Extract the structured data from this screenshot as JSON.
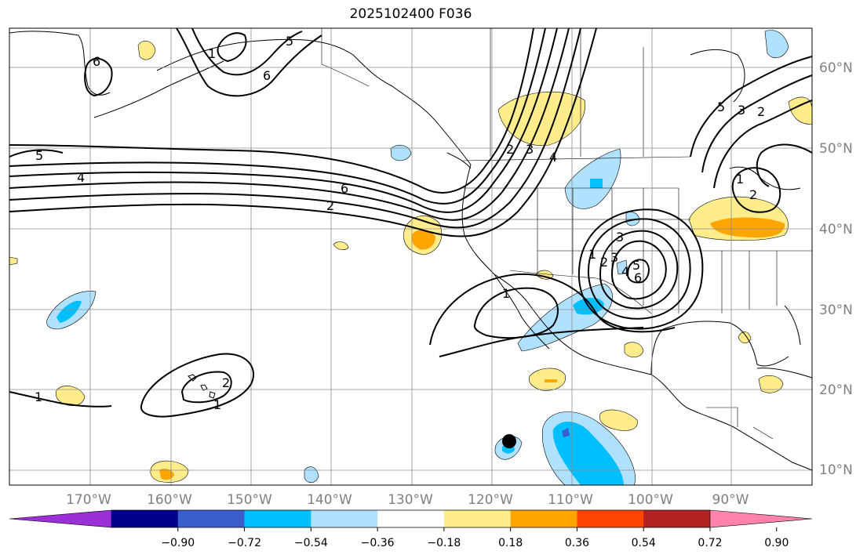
{
  "title": "2025102400 F036",
  "map": {
    "lat_labels": [
      "60°N",
      "50°N",
      "40°N",
      "30°N",
      "20°N",
      "10°N"
    ],
    "lon_labels": [
      "170°W",
      "160°W",
      "150°W",
      "140°W",
      "130°W",
      "120°W",
      "110°W",
      "100°W",
      "90°W"
    ],
    "contour_labels": [
      "6",
      "5",
      "4",
      "6",
      "2",
      "5",
      "6",
      "1",
      "2",
      "3",
      "4",
      "5",
      "3",
      "2",
      "1",
      "2",
      "3",
      "1",
      "2",
      "3",
      "4",
      "5",
      "6",
      "1",
      "1",
      "2"
    ]
  },
  "colorbar": {
    "ticks": [
      "−0.90",
      "−0.72",
      "−0.54",
      "−0.36",
      "−0.18",
      "0.18",
      "0.36",
      "0.54",
      "0.72",
      "0.90"
    ],
    "colors": [
      "#9b30d9",
      "#00008b",
      "#3a5fcd",
      "#00bfff",
      "#b0e2ff",
      "#ffffff",
      "#ffec8b",
      "#ffa500",
      "#ff4500",
      "#b22222",
      "#ff82ab"
    ]
  },
  "colors": {
    "neg_light": "#b0e2ff",
    "neg_mid": "#00bfff",
    "neg_dark": "#3a5fcd",
    "pos_light": "#ffec8b",
    "pos_mid": "#ffa500"
  }
}
